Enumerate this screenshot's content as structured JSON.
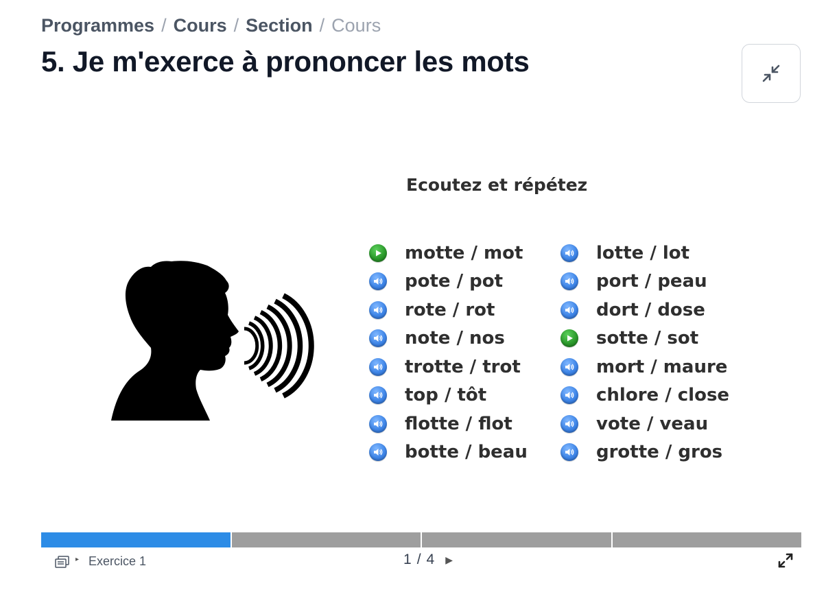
{
  "breadcrumb": {
    "items": [
      "Programmes",
      "Cours",
      "Section"
    ],
    "separator": "/",
    "current": "Cours"
  },
  "page": {
    "title": "5. Je m'exerce à prononcer les mots"
  },
  "slide": {
    "heading": "Ecoutez et répétez",
    "left_column": [
      {
        "label": "motte / mot",
        "icon": "play-icon"
      },
      {
        "label": "pote / pot",
        "icon": "speaker-icon"
      },
      {
        "label": "rote / rot",
        "icon": "speaker-icon"
      },
      {
        "label": "note / nos",
        "icon": "speaker-icon"
      },
      {
        "label": "trotte / trot",
        "icon": "speaker-icon"
      },
      {
        "label": "top / tôt",
        "icon": "speaker-icon"
      },
      {
        "label": "flotte / flot",
        "icon": "speaker-icon"
      },
      {
        "label": "botte / beau",
        "icon": "speaker-icon"
      }
    ],
    "right_column": [
      {
        "label": "lotte / lot",
        "icon": "speaker-icon"
      },
      {
        "label": "port / peau",
        "icon": "speaker-icon"
      },
      {
        "label": "dort / dose",
        "icon": "speaker-icon"
      },
      {
        "label": "sotte / sot",
        "icon": "play-icon"
      },
      {
        "label": "mort / maure",
        "icon": "speaker-icon"
      },
      {
        "label": "chlore / close",
        "icon": "speaker-icon"
      },
      {
        "label": "vote / veau",
        "icon": "speaker-icon"
      },
      {
        "label": "grotte / gros",
        "icon": "speaker-icon"
      }
    ]
  },
  "colors": {
    "progress_done": "#2d8ce6",
    "progress_todo": "#9e9e9e",
    "speaker_button": "#3f86e8",
    "play_button": "#2c9a2c"
  },
  "progress": {
    "segments": 4,
    "completed": 1
  },
  "footer": {
    "exercise_label": "Exercice 1",
    "page_current": "1",
    "page_separator": "/",
    "page_total": "4"
  }
}
